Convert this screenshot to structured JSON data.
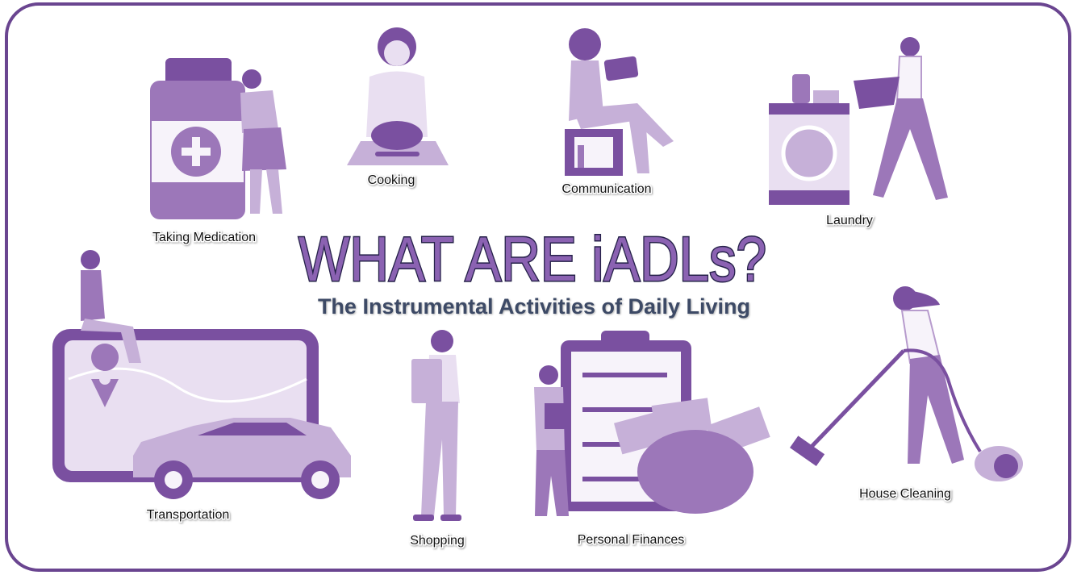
{
  "header": {
    "title": "WHAT ARE iADLs?",
    "subtitle": "The Instrumental Activities of Daily Living"
  },
  "activities": [
    "Taking Medication",
    "Cooking",
    "Communication",
    "Laundry",
    "Transportation",
    "Shopping",
    "Personal Finances",
    "House Cleaning"
  ]
}
